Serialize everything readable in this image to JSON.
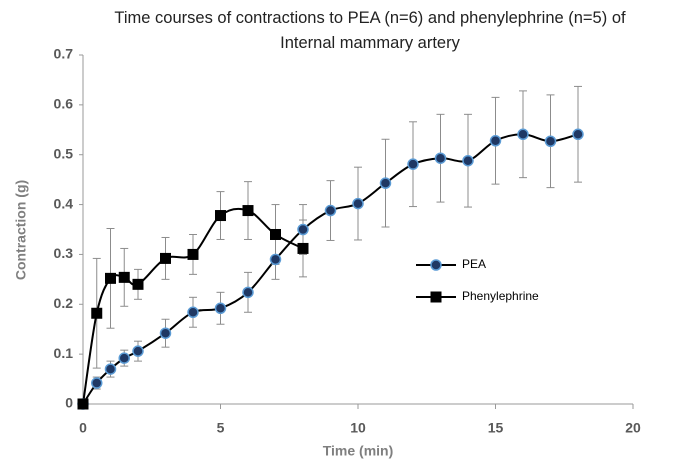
{
  "chart_data": {
    "type": "line",
    "title": "Time courses of contractions to PEA (n=6) and phenylephrine (n=5) of Internal mammary artery",
    "xlabel": "Time (min)",
    "ylabel": "Contraction (g)",
    "xlim": [
      0,
      20
    ],
    "xticks": [
      0,
      5,
      10,
      15,
      20
    ],
    "ylim": [
      0,
      0.7
    ],
    "yticks": [
      0,
      0.1,
      0.2,
      0.3,
      0.4,
      0.5,
      0.6,
      0.7
    ],
    "legend": "center-right",
    "grid": false,
    "series": [
      {
        "name": "PEA",
        "color": "#1f3864",
        "marker": "circle",
        "x": [
          0,
          0.5,
          1,
          1.5,
          2,
          3,
          4,
          5,
          6,
          7,
          8,
          9,
          10,
          11,
          12,
          13,
          14,
          15,
          16,
          17,
          18
        ],
        "values": [
          0,
          0.042,
          0.07,
          0.092,
          0.106,
          0.142,
          0.184,
          0.192,
          0.224,
          0.29,
          0.35,
          0.388,
          0.402,
          0.443,
          0.481,
          0.493,
          0.488,
          0.528,
          0.541,
          0.527,
          0.541
        ],
        "errors": [
          0,
          0.012,
          0.016,
          0.016,
          0.02,
          0.028,
          0.03,
          0.032,
          0.04,
          0.04,
          0.05,
          0.06,
          0.073,
          0.088,
          0.085,
          0.088,
          0.093,
          0.087,
          0.087,
          0.093,
          0.096
        ]
      },
      {
        "name": "Phenylephrine",
        "color": "#000000",
        "marker": "square",
        "x": [
          0,
          0.5,
          1,
          1.5,
          2,
          3,
          4,
          5,
          6,
          7,
          8
        ],
        "values": [
          0,
          0.182,
          0.252,
          0.254,
          0.24,
          0.292,
          0.3,
          0.378,
          0.388,
          0.34,
          0.312
        ],
        "errors": [
          0,
          0.11,
          0.1,
          0.058,
          0.03,
          0.042,
          0.04,
          0.048,
          0.058,
          0.06,
          0.057
        ]
      }
    ]
  }
}
